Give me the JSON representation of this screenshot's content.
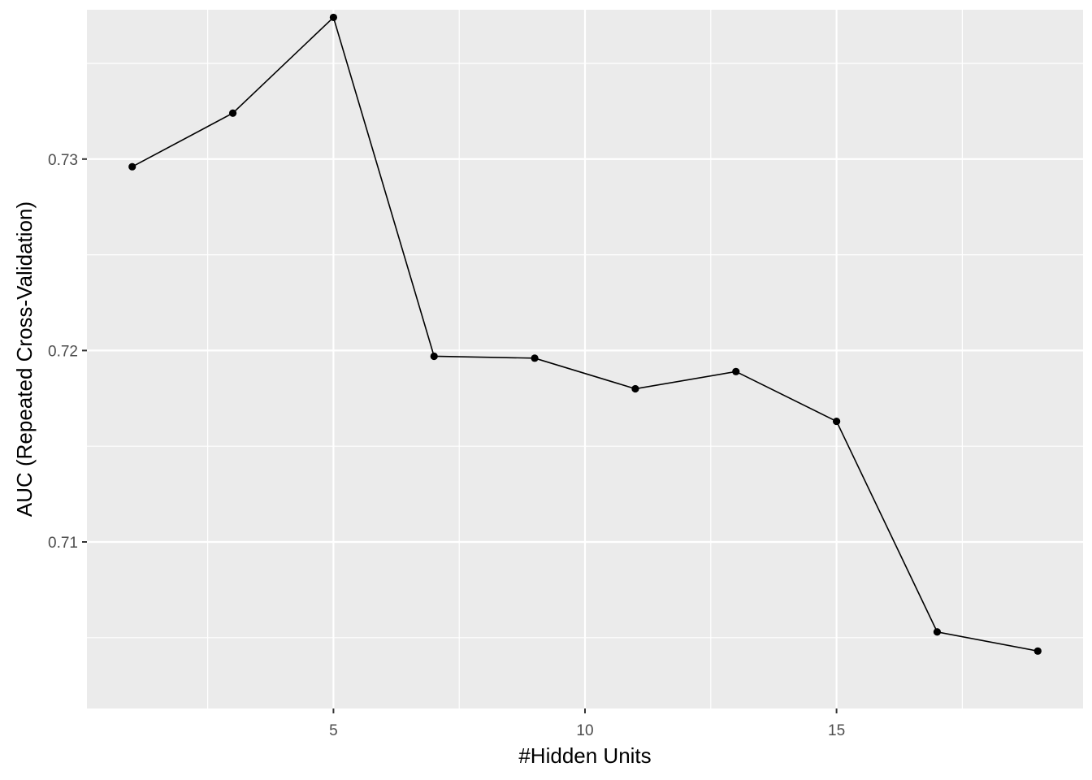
{
  "chart_data": {
    "type": "line",
    "title": "",
    "xlabel": "#Hidden Units",
    "ylabel": "AUC (Repeated Cross-Validation)",
    "x": [
      1,
      3,
      5,
      7,
      9,
      11,
      13,
      15,
      17,
      19
    ],
    "series": [
      {
        "values": [
          0.7296,
          0.7324,
          0.7374,
          0.7197,
          0.7196,
          0.718,
          0.7189,
          0.7163,
          0.7053,
          0.7043
        ]
      }
    ],
    "xlim": [
      0.1,
      19.9
    ],
    "ylim": [
      0.7013,
      0.7378
    ],
    "x_ticks": [
      5,
      10,
      15
    ],
    "x_tick_labels": [
      "5",
      "10",
      "15"
    ],
    "y_ticks": [
      0.71,
      0.72,
      0.73
    ],
    "y_tick_labels": [
      "0.71",
      "0.72",
      "0.73"
    ],
    "x_minor_ticks": [
      2.5,
      7.5,
      12.5,
      17.5
    ],
    "y_minor_ticks": [
      0.705,
      0.715,
      0.725,
      0.735
    ],
    "grid": true,
    "legend": "none",
    "colors": {
      "panel_background": "#ebebeb",
      "grid_line": "#ffffff",
      "line": "#000000",
      "point": "#000000",
      "tick_label": "#4d4d4d",
      "axis_title": "#000000"
    }
  }
}
